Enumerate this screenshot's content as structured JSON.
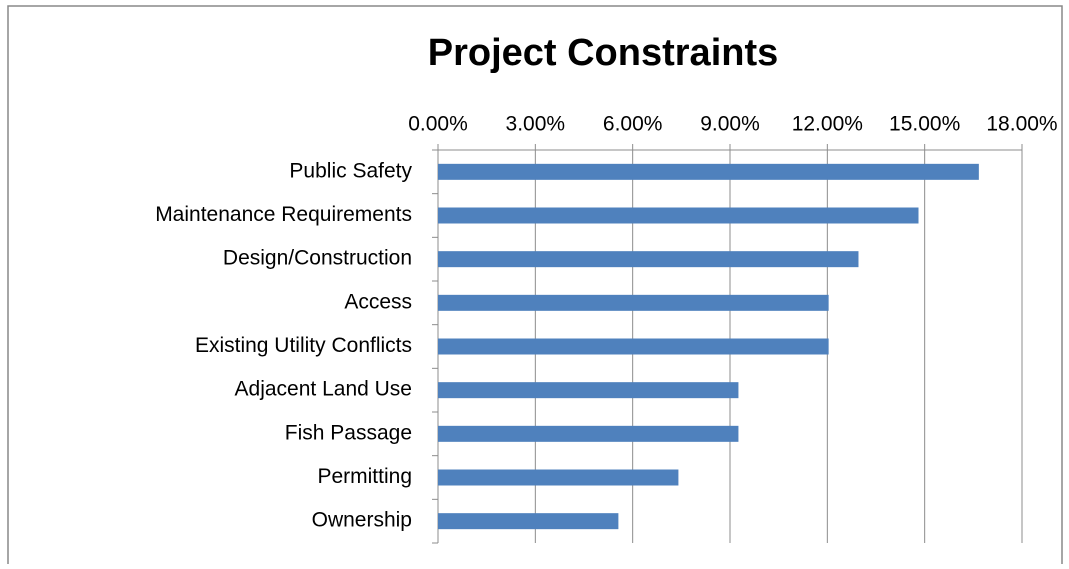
{
  "chart_data": {
    "type": "bar",
    "orientation": "horizontal",
    "title": "Project Constraints",
    "categories": [
      "Public Safety",
      "Maintenance Requirements",
      "Design/Construction",
      "Access",
      "Existing Utility Conflicts",
      "Adjacent Land Use",
      "Fish Passage",
      "Permitting",
      "Ownership"
    ],
    "values": [
      16.67,
      14.81,
      12.96,
      12.04,
      12.04,
      9.26,
      9.26,
      7.41,
      5.56
    ],
    "color": "#4f81bd",
    "xlim": [
      0,
      18
    ],
    "xticks": [
      {
        "value": 0,
        "label": "0.00%"
      },
      {
        "value": 3,
        "label": "3.00%"
      },
      {
        "value": 6,
        "label": "6.00%"
      },
      {
        "value": 9,
        "label": "9.00%"
      },
      {
        "value": 12,
        "label": "12.00%"
      },
      {
        "value": 15,
        "label": "15.00%"
      },
      {
        "value": 18,
        "label": "18.00%"
      }
    ],
    "grid": true
  }
}
